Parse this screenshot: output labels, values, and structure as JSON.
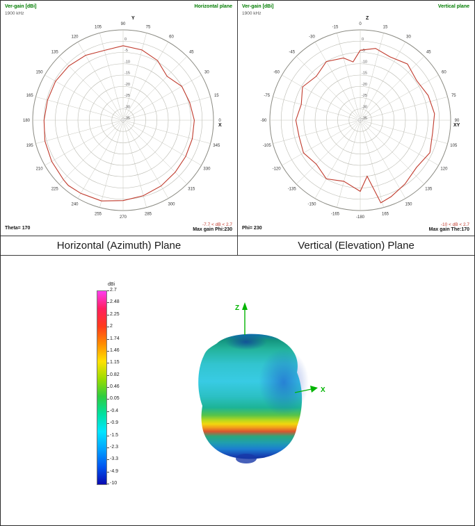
{
  "captions": {
    "left": "Horizontal (Azimuth) Plane",
    "right": "Vertical (Elevation) Plane"
  },
  "charts": {
    "left": {
      "gain_label": "Ver-gain [dBi]",
      "frequency": "1900 kHz",
      "plane_label": "Horizontal plane",
      "cut_label": "Theta= 170",
      "range_label": "-7.7 < dB < 2.7",
      "max_gain_label": "Max gain Phi:230",
      "axis_top": "Y",
      "axis_right": "X"
    },
    "right": {
      "gain_label": "Ver-gain [dBi]",
      "frequency": "1900 kHz",
      "plane_label": "Vertical plane",
      "cut_label": "Phi= 230",
      "range_label": "-10 < dB < 2.7",
      "max_gain_label": "Max gain The:170",
      "axis_top": "Z",
      "axis_right": "XY"
    }
  },
  "colorbar": {
    "title": "dBi",
    "tick_labels": [
      "2.7",
      "2.48",
      "2.25",
      "2",
      "1.74",
      "1.46",
      "1.15",
      "0.82",
      "0.46",
      "0.05",
      "-0.4",
      "-0.9",
      "-1.5",
      "-2.3",
      "-3.3",
      "-4.9",
      "-10"
    ],
    "gradient": [
      "#ff3df0",
      "#ff1f5e",
      "#ff3b1c",
      "#ff8c00",
      "#ffe100",
      "#9bdc00",
      "#2ecc40",
      "#00e0a0",
      "#00e5ff",
      "#00a2ff",
      "#0055f0",
      "#0b0bb0"
    ]
  },
  "axes_3d": {
    "vertical": "Z",
    "horizontal": "X",
    "color": "#00b400"
  },
  "chart_data": [
    {
      "type": "line",
      "subtype": "polar",
      "name": "horizontal-azimuth-pattern",
      "title": "Ver-gain [dBi] - Horizontal plane",
      "frequency": "1900 kHz",
      "mode": "ccw-right0",
      "angle_unit": "deg",
      "angle_ticks": [
        0,
        15,
        30,
        45,
        60,
        75,
        90,
        105,
        120,
        135,
        150,
        165,
        180,
        195,
        210,
        225,
        240,
        255,
        270,
        285,
        300,
        315,
        330,
        345
      ],
      "r_axis": {
        "unit": "dB",
        "min": -35,
        "max": 5,
        "ring_step": 5,
        "ring_labels": [
          0,
          -5,
          -10,
          -15,
          -20,
          -25,
          -30,
          -35
        ]
      },
      "points": [
        [
          0,
          -3.5
        ],
        [
          15,
          -4.5
        ],
        [
          30,
          -5
        ],
        [
          45,
          -7.5
        ],
        [
          60,
          -4.5
        ],
        [
          75,
          -2.8
        ],
        [
          90,
          -2
        ],
        [
          105,
          -3
        ],
        [
          120,
          -1.8
        ],
        [
          135,
          -1
        ],
        [
          150,
          -0.5
        ],
        [
          165,
          -0.4
        ],
        [
          180,
          0
        ],
        [
          195,
          0.8
        ],
        [
          210,
          1.5
        ],
        [
          225,
          2.3
        ],
        [
          230,
          2.7
        ],
        [
          240,
          2.4
        ],
        [
          255,
          2
        ],
        [
          270,
          0.6
        ],
        [
          285,
          -0.4
        ],
        [
          300,
          -1.4
        ],
        [
          315,
          -2.4
        ],
        [
          330,
          -3
        ],
        [
          345,
          -3.3
        ]
      ],
      "min_dB": -7.7,
      "max_dB": 2.7,
      "max_gain_at": "Phi:230",
      "cut": "Theta= 170",
      "trace_color": "#c0392b"
    },
    {
      "type": "line",
      "subtype": "polar",
      "name": "vertical-elevation-pattern",
      "title": "Ver-gain [dBi] - Vertical plane",
      "frequency": "1900 kHz",
      "mode": "cw-top0",
      "angle_unit": "deg",
      "angle_ticks": [
        0,
        15,
        30,
        45,
        60,
        75,
        90,
        105,
        120,
        135,
        150,
        165,
        -180,
        -165,
        -150,
        -135,
        -120,
        -105,
        -90,
        -75,
        -60,
        -45,
        -30,
        -15
      ],
      "r_axis": {
        "unit": "dB",
        "min": -35,
        "max": 5,
        "ring_step": 5,
        "ring_labels": [
          0,
          -5,
          -10,
          -15,
          -20,
          -25,
          -30,
          -35
        ]
      },
      "points": [
        [
          -180,
          -3.5
        ],
        [
          -165,
          -7
        ],
        [
          -150,
          -5
        ],
        [
          -135,
          -7.5
        ],
        [
          -120,
          -6
        ],
        [
          -105,
          -7
        ],
        [
          -90,
          -6.5
        ],
        [
          -75,
          -8
        ],
        [
          -60,
          -5.5
        ],
        [
          -45,
          -7.5
        ],
        [
          -30,
          -5
        ],
        [
          -15,
          -6.5
        ],
        [
          -7,
          -9
        ],
        [
          0,
          -4
        ],
        [
          12,
          -2.5
        ],
        [
          25,
          -4
        ],
        [
          40,
          -2.5
        ],
        [
          55,
          -4.5
        ],
        [
          70,
          -3
        ],
        [
          85,
          -2
        ],
        [
          100,
          -2.5
        ],
        [
          115,
          -1
        ],
        [
          130,
          -2.5
        ],
        [
          145,
          -0.5
        ],
        [
          158,
          1.5
        ],
        [
          166,
          2.7
        ],
        [
          173,
          -10
        ],
        [
          180,
          -3.5
        ]
      ],
      "min_dB": -10,
      "max_dB": 2.7,
      "max_gain_at": "The:170",
      "cut": "Phi= 230",
      "trace_color": "#c0392b"
    },
    {
      "type": "heatmap",
      "subtype": "3d-radiation-pattern",
      "name": "3d-gain-pattern",
      "title": "3D gain pattern",
      "unit": "dBi",
      "colorbar_ticks": [
        2.7,
        2.48,
        2.25,
        2,
        1.74,
        1.46,
        1.15,
        0.82,
        0.46,
        0.05,
        -0.4,
        -0.9,
        -1.5,
        -2.3,
        -3.3,
        -4.9,
        -10
      ],
      "range": [
        -10,
        2.7
      ],
      "axes": [
        "Z",
        "X"
      ]
    }
  ]
}
